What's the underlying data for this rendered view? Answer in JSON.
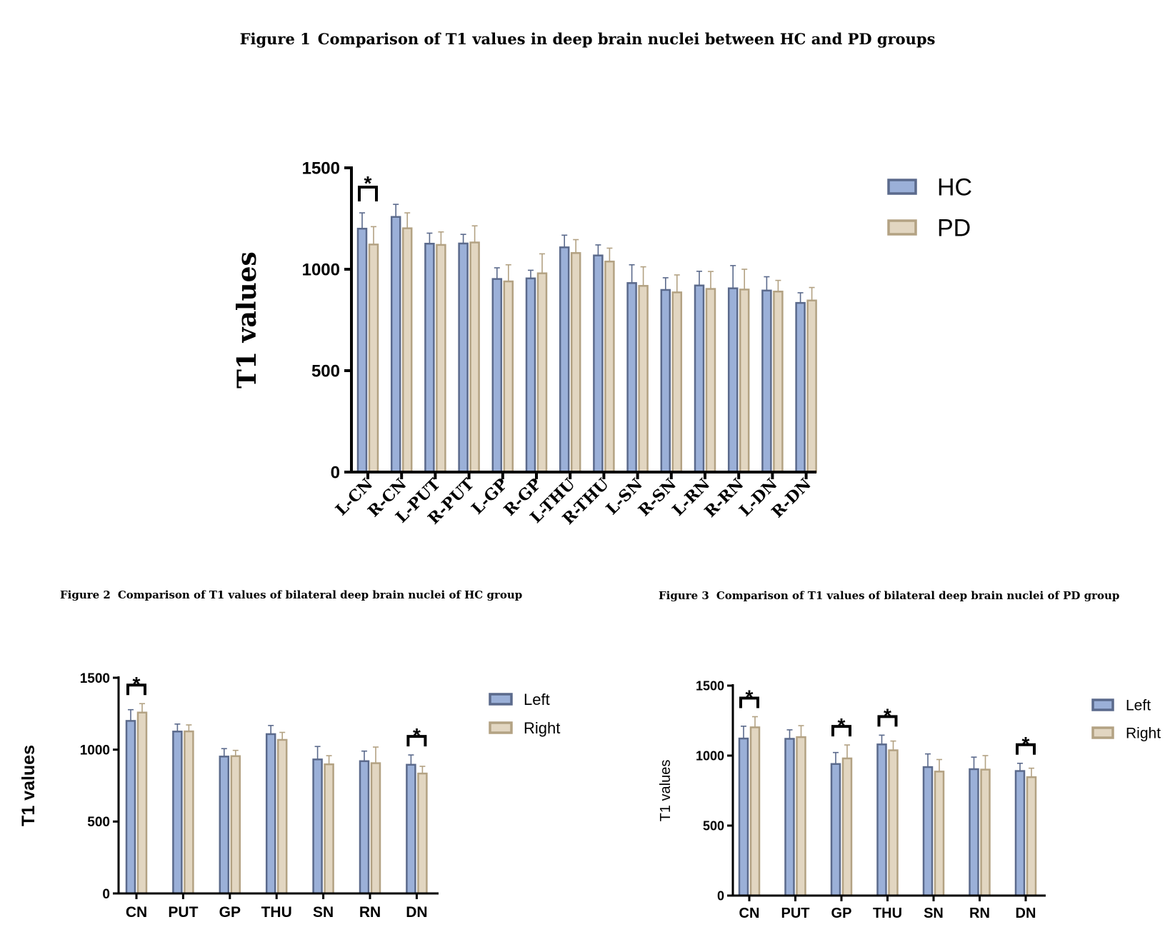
{
  "figures": [
    {
      "caption_num": "Figure 1",
      "caption_text": "Comparison of T1 values in deep brain nuclei between HC and PD groups",
      "chart_data": {
        "type": "bar",
        "title": "Comparison of T1 values in deep brain nuclei between HC and PD groups",
        "ylabel": "T1 values",
        "xlabel": "",
        "ylim": [
          0,
          1500
        ],
        "yticks": [
          0,
          500,
          1000,
          1500
        ],
        "categories": [
          "L-CN",
          "R-CN",
          "L-PUT",
          "R-PUT",
          "L-GP",
          "R-GP",
          "L-THU",
          "R-THU",
          "L-SN",
          "R-SN",
          "L-RN",
          "R-RN",
          "L-DN",
          "R-DN"
        ],
        "series": [
          {
            "name": "HC",
            "values": [
              1200,
              1258,
              1126,
              1127,
              952,
              955,
              1108,
              1068,
              932,
              898,
              920,
              906,
              895,
              834
            ],
            "errors": [
              78,
              62,
              52,
              45,
              55,
              40,
              60,
              52,
              90,
              60,
              70,
              112,
              68,
              50
            ]
          },
          {
            "name": "PD",
            "values": [
              1122,
              1202,
              1120,
              1132,
              940,
              980,
              1080,
              1038,
              918,
              886,
              903,
              900,
              890,
              846
            ],
            "errors": [
              88,
              76,
              64,
              82,
              82,
              96,
              66,
              66,
              94,
              86,
              86,
              100,
              55,
              64
            ]
          }
        ],
        "significance": [
          {
            "category": "L-CN",
            "label": "*"
          }
        ],
        "legend_position": "top-right"
      }
    },
    {
      "caption_num": "Figure 2",
      "caption_text": "Comparison of T1 values of bilateral deep brain nuclei of HC group",
      "chart_data": {
        "type": "bar",
        "title": "Comparison of T1 values of bilateral deep brain nuclei of HC group",
        "ylabel": "T1 values",
        "xlabel": "",
        "ylim": [
          0,
          1500
        ],
        "yticks": [
          0,
          500,
          1000,
          1500
        ],
        "categories": [
          "CN",
          "PUT",
          "GP",
          "THU",
          "SN",
          "RN",
          "DN"
        ],
        "series": [
          {
            "name": "Left",
            "values": [
              1200,
              1126,
              952,
              1108,
              932,
              920,
              895
            ],
            "errors": [
              78,
              52,
              55,
              60,
              90,
              70,
              68
            ]
          },
          {
            "name": "Right",
            "values": [
              1258,
              1127,
              955,
              1068,
              898,
              906,
              834
            ],
            "errors": [
              62,
              45,
              40,
              52,
              60,
              112,
              50
            ]
          }
        ],
        "significance": [
          {
            "category": "CN",
            "label": "*"
          },
          {
            "category": "DN",
            "label": "*"
          }
        ],
        "legend_position": "top-right"
      }
    },
    {
      "caption_num": "Figure 3",
      "caption_text": "Comparison of T1 values of bilateral deep brain nuclei of PD group",
      "chart_data": {
        "type": "bar",
        "title": "Comparison of T1 values of bilateral deep brain nuclei of PD group",
        "ylabel": "T1 values",
        "xlabel": "",
        "ylim": [
          0,
          1500
        ],
        "yticks": [
          0,
          500,
          1000,
          1500
        ],
        "categories": [
          "CN",
          "PUT",
          "GP",
          "THU",
          "SN",
          "RN",
          "DN"
        ],
        "series": [
          {
            "name": "Left",
            "values": [
              1122,
              1120,
              940,
              1080,
              918,
              903,
              890
            ],
            "errors": [
              88,
              64,
              82,
              66,
              94,
              86,
              55
            ]
          },
          {
            "name": "Right",
            "values": [
              1202,
              1132,
              980,
              1038,
              886,
              900,
              846
            ],
            "errors": [
              76,
              82,
              96,
              66,
              86,
              100,
              64
            ]
          }
        ],
        "significance": [
          {
            "category": "CN",
            "label": "*"
          },
          {
            "category": "GP",
            "label": "*"
          },
          {
            "category": "THU",
            "label": "*"
          },
          {
            "category": "DN",
            "label": "*"
          }
        ],
        "legend_position": "top-right"
      }
    }
  ],
  "colors": {
    "series1_fill": "#9bb0d8",
    "series1_stroke": "#5b6a8c",
    "series2_fill": "#e2d6c1",
    "series2_stroke": "#b3a283",
    "axis": "#000000"
  }
}
